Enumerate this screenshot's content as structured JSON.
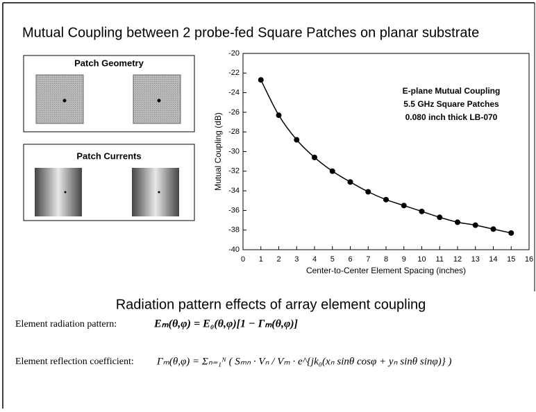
{
  "title": "Mutual Coupling between 2 probe-fed Square Patches on planar substrate",
  "panels": [
    {
      "label": "Patch Geometry"
    },
    {
      "label": "Patch Currents"
    }
  ],
  "chart_data": {
    "type": "line",
    "xlabel": "Center-to-Center Element Spacing (inches)",
    "ylabel": "Mutual Coupling (dB)",
    "annotations": [
      "E-plane Mutual Coupling",
      "5.5 GHz Square Patches",
      "0.080 inch thick LB-070"
    ],
    "x": [
      1,
      2,
      3,
      4,
      5,
      6,
      7,
      8,
      9,
      10,
      11,
      12,
      13,
      14,
      15
    ],
    "values": [
      -22.7,
      -26.3,
      -28.8,
      -30.6,
      -32.0,
      -33.1,
      -34.1,
      -34.9,
      -35.5,
      -36.1,
      -36.7,
      -37.2,
      -37.5,
      -37.9,
      -38.3
    ],
    "color": "#000000",
    "xlim": [
      0,
      16
    ],
    "xticks": [
      0,
      1,
      2,
      3,
      4,
      5,
      6,
      7,
      8,
      9,
      10,
      11,
      12,
      13,
      14,
      15,
      16
    ],
    "ylim": [
      -40,
      -20
    ],
    "yticks": [
      -40,
      -38,
      -36,
      -34,
      -32,
      -30,
      -28,
      -26,
      -24,
      -22,
      -20
    ],
    "grid": false
  },
  "section_title": "Radiation pattern effects of array element coupling",
  "equations": [
    {
      "label": "Element radiation pattern:",
      "formula": "Eₘ(θ,φ) = E₀(θ,φ)[1 − Γₘ(θ,φ)]"
    },
    {
      "label": "Element reflection coefficient:",
      "formula": "Γₘ(θ,φ) = Σₙ₌₁ᴺ ( Sₘₙ · Vₙ / Vₘ · e^{jk₀(xₙ sinθ cosφ + yₙ sinθ sinφ)} )"
    }
  ]
}
